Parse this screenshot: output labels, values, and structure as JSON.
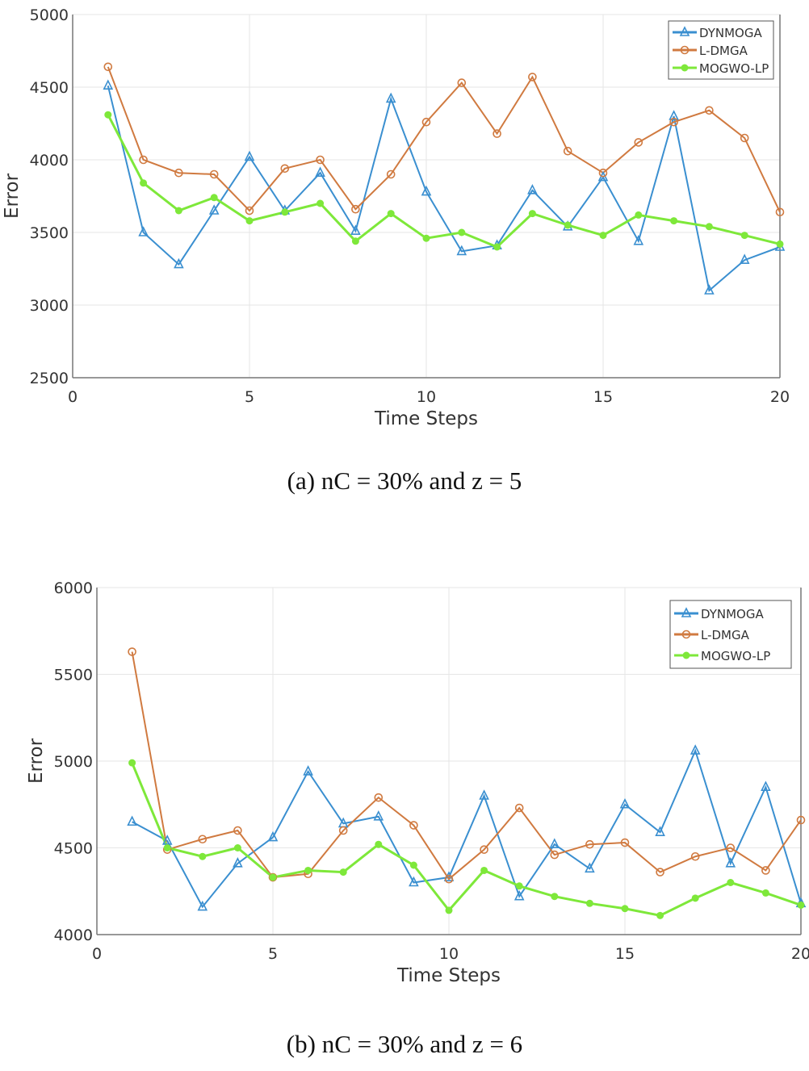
{
  "chart_data": [
    {
      "type": "line",
      "caption": "(a) nC = 30%  and  z = 5",
      "xlabel": "Time Steps",
      "ylabel": "Error",
      "xlim": [
        0,
        20
      ],
      "ylim": [
        2500,
        5000
      ],
      "xticks": [
        0,
        5,
        10,
        15,
        20
      ],
      "yticks": [
        2500,
        3000,
        3500,
        4000,
        4500,
        5000
      ],
      "grid": true,
      "legend_position": "top-right",
      "x": [
        1,
        2,
        3,
        4,
        5,
        6,
        7,
        8,
        9,
        10,
        11,
        12,
        13,
        14,
        15,
        16,
        17,
        18,
        19,
        20
      ],
      "series": [
        {
          "name": "DYNMOGA",
          "color": "#3a8fd0",
          "marker": "triangle",
          "values": [
            4510,
            3500,
            3280,
            3650,
            4020,
            3650,
            3910,
            3510,
            4420,
            3780,
            3370,
            3410,
            3790,
            3540,
            3880,
            3440,
            4300,
            3100,
            3310,
            3400
          ]
        },
        {
          "name": "L-DMGA",
          "color": "#d07a40",
          "marker": "circle",
          "values": [
            4640,
            4000,
            3910,
            3900,
            3650,
            3940,
            4000,
            3660,
            3900,
            4260,
            4530,
            4180,
            4570,
            4060,
            3910,
            4120,
            4260,
            4340,
            4150,
            3640
          ]
        },
        {
          "name": "MOGWO-LP",
          "color": "#7ee83a",
          "marker": "dot",
          "values": [
            4310,
            3840,
            3650,
            3740,
            3580,
            3640,
            3700,
            3440,
            3630,
            3460,
            3500,
            3400,
            3630,
            3550,
            3480,
            3620,
            3580,
            3540,
            3480,
            3420
          ]
        }
      ]
    },
    {
      "type": "line",
      "caption": "(b) nC = 30%  and z = 6",
      "xlabel": "Time Steps",
      "ylabel": "Error",
      "xlim": [
        0,
        20
      ],
      "ylim": [
        4000,
        6000
      ],
      "xticks": [
        0,
        5,
        10,
        15,
        20
      ],
      "yticks": [
        4000,
        4500,
        5000,
        5500,
        6000
      ],
      "grid": true,
      "legend_position": "top-right",
      "x": [
        1,
        2,
        3,
        4,
        5,
        6,
        7,
        8,
        9,
        10,
        11,
        12,
        13,
        14,
        15,
        16,
        17,
        18,
        19,
        20
      ],
      "series": [
        {
          "name": "DYNMOGA",
          "color": "#3a8fd0",
          "marker": "triangle",
          "values": [
            4650,
            4540,
            4160,
            4410,
            4560,
            4940,
            4640,
            4680,
            4300,
            4330,
            4800,
            4220,
            4520,
            4380,
            4750,
            4590,
            5060,
            4410,
            4850,
            4180
          ]
        },
        {
          "name": "L-DMGA",
          "color": "#d07a40",
          "marker": "circle",
          "values": [
            5630,
            4490,
            4550,
            4600,
            4330,
            4350,
            4600,
            4790,
            4630,
            4320,
            4490,
            4730,
            4460,
            4520,
            4530,
            4360,
            4450,
            4500,
            4370,
            4660
          ]
        },
        {
          "name": "MOGWO-LP",
          "color": "#7ee83a",
          "marker": "dot",
          "values": [
            4990,
            4500,
            4450,
            4500,
            4330,
            4370,
            4360,
            4520,
            4400,
            4140,
            4370,
            4280,
            4220,
            4180,
            4150,
            4110,
            4210,
            4300,
            4240,
            4170
          ]
        }
      ]
    }
  ]
}
